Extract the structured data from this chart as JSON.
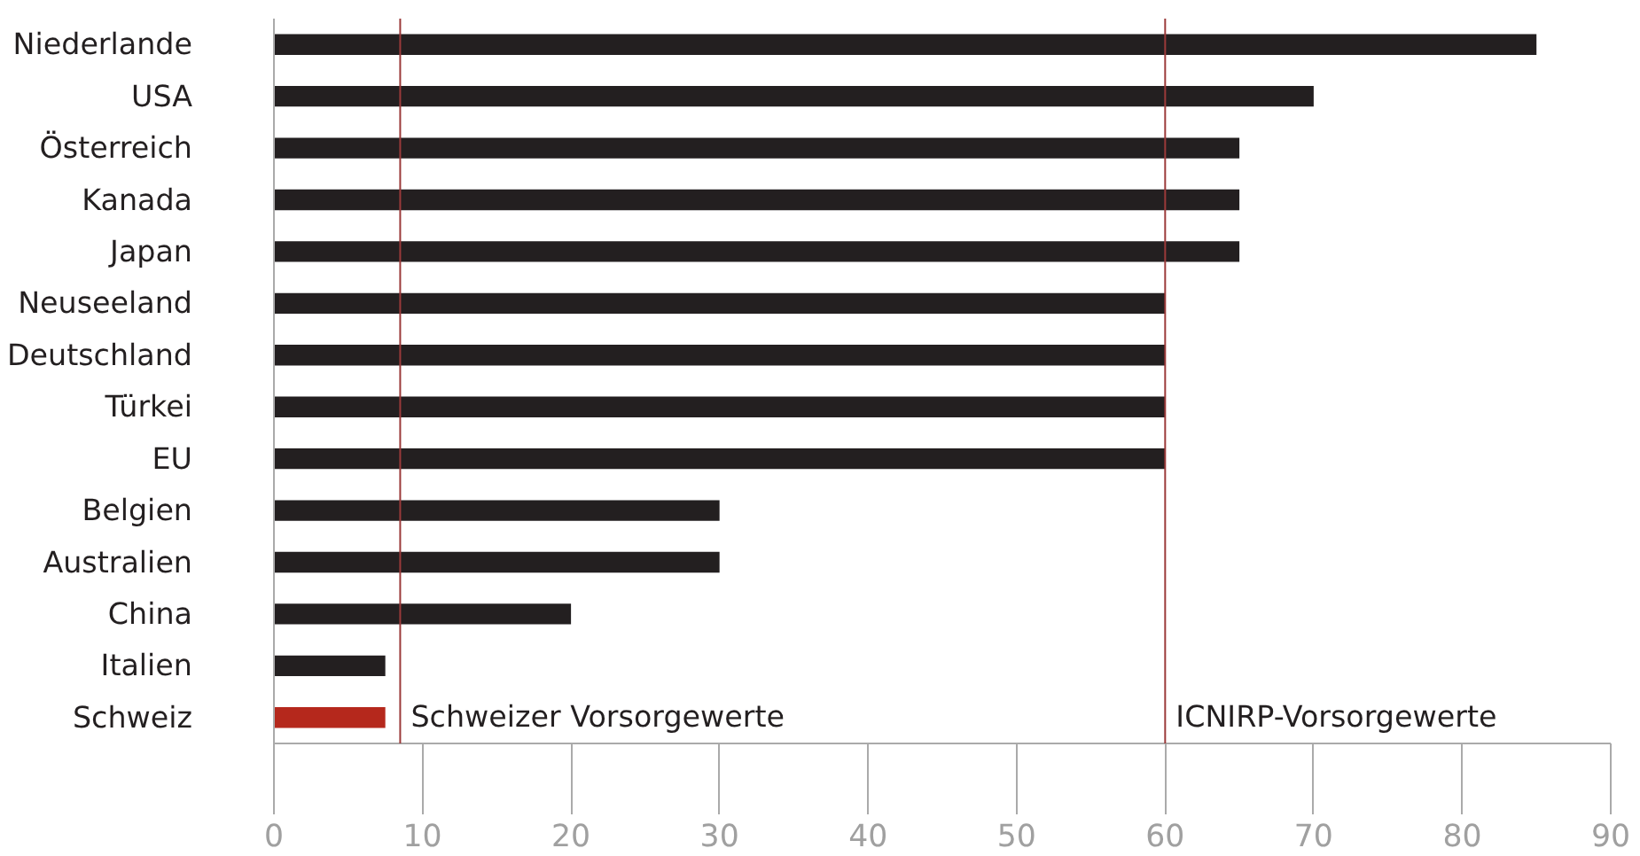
{
  "chart_data": {
    "type": "bar",
    "orientation": "horizontal",
    "categories": [
      "Niederlande",
      "USA",
      "Österreich",
      "Kanada",
      "Japan",
      "Neuseeland",
      "Deutschland",
      "Türkei",
      "EU",
      "Belgien",
      "Australien",
      "China",
      "Italien",
      "Schweiz"
    ],
    "values": [
      85,
      70,
      65,
      65,
      65,
      60,
      60,
      60,
      60,
      30,
      30,
      20,
      7.5,
      7.5
    ],
    "colors": [
      "#231f20",
      "#231f20",
      "#231f20",
      "#231f20",
      "#231f20",
      "#231f20",
      "#231f20",
      "#231f20",
      "#231f20",
      "#231f20",
      "#231f20",
      "#231f20",
      "#231f20",
      "#b5281c"
    ],
    "xlim": [
      0,
      90
    ],
    "xticks": [
      0,
      10,
      20,
      30,
      40,
      50,
      60,
      70,
      80,
      90
    ],
    "ref_lines": [
      {
        "axis": "x",
        "value": 8.5,
        "label": "Schweizer Vorsorgewerte",
        "color": "#9b3a3a"
      },
      {
        "axis": "x",
        "value": 60,
        "label": "ICNIRP-Vorsorgewerte",
        "color": "#9b3a3a"
      }
    ]
  }
}
